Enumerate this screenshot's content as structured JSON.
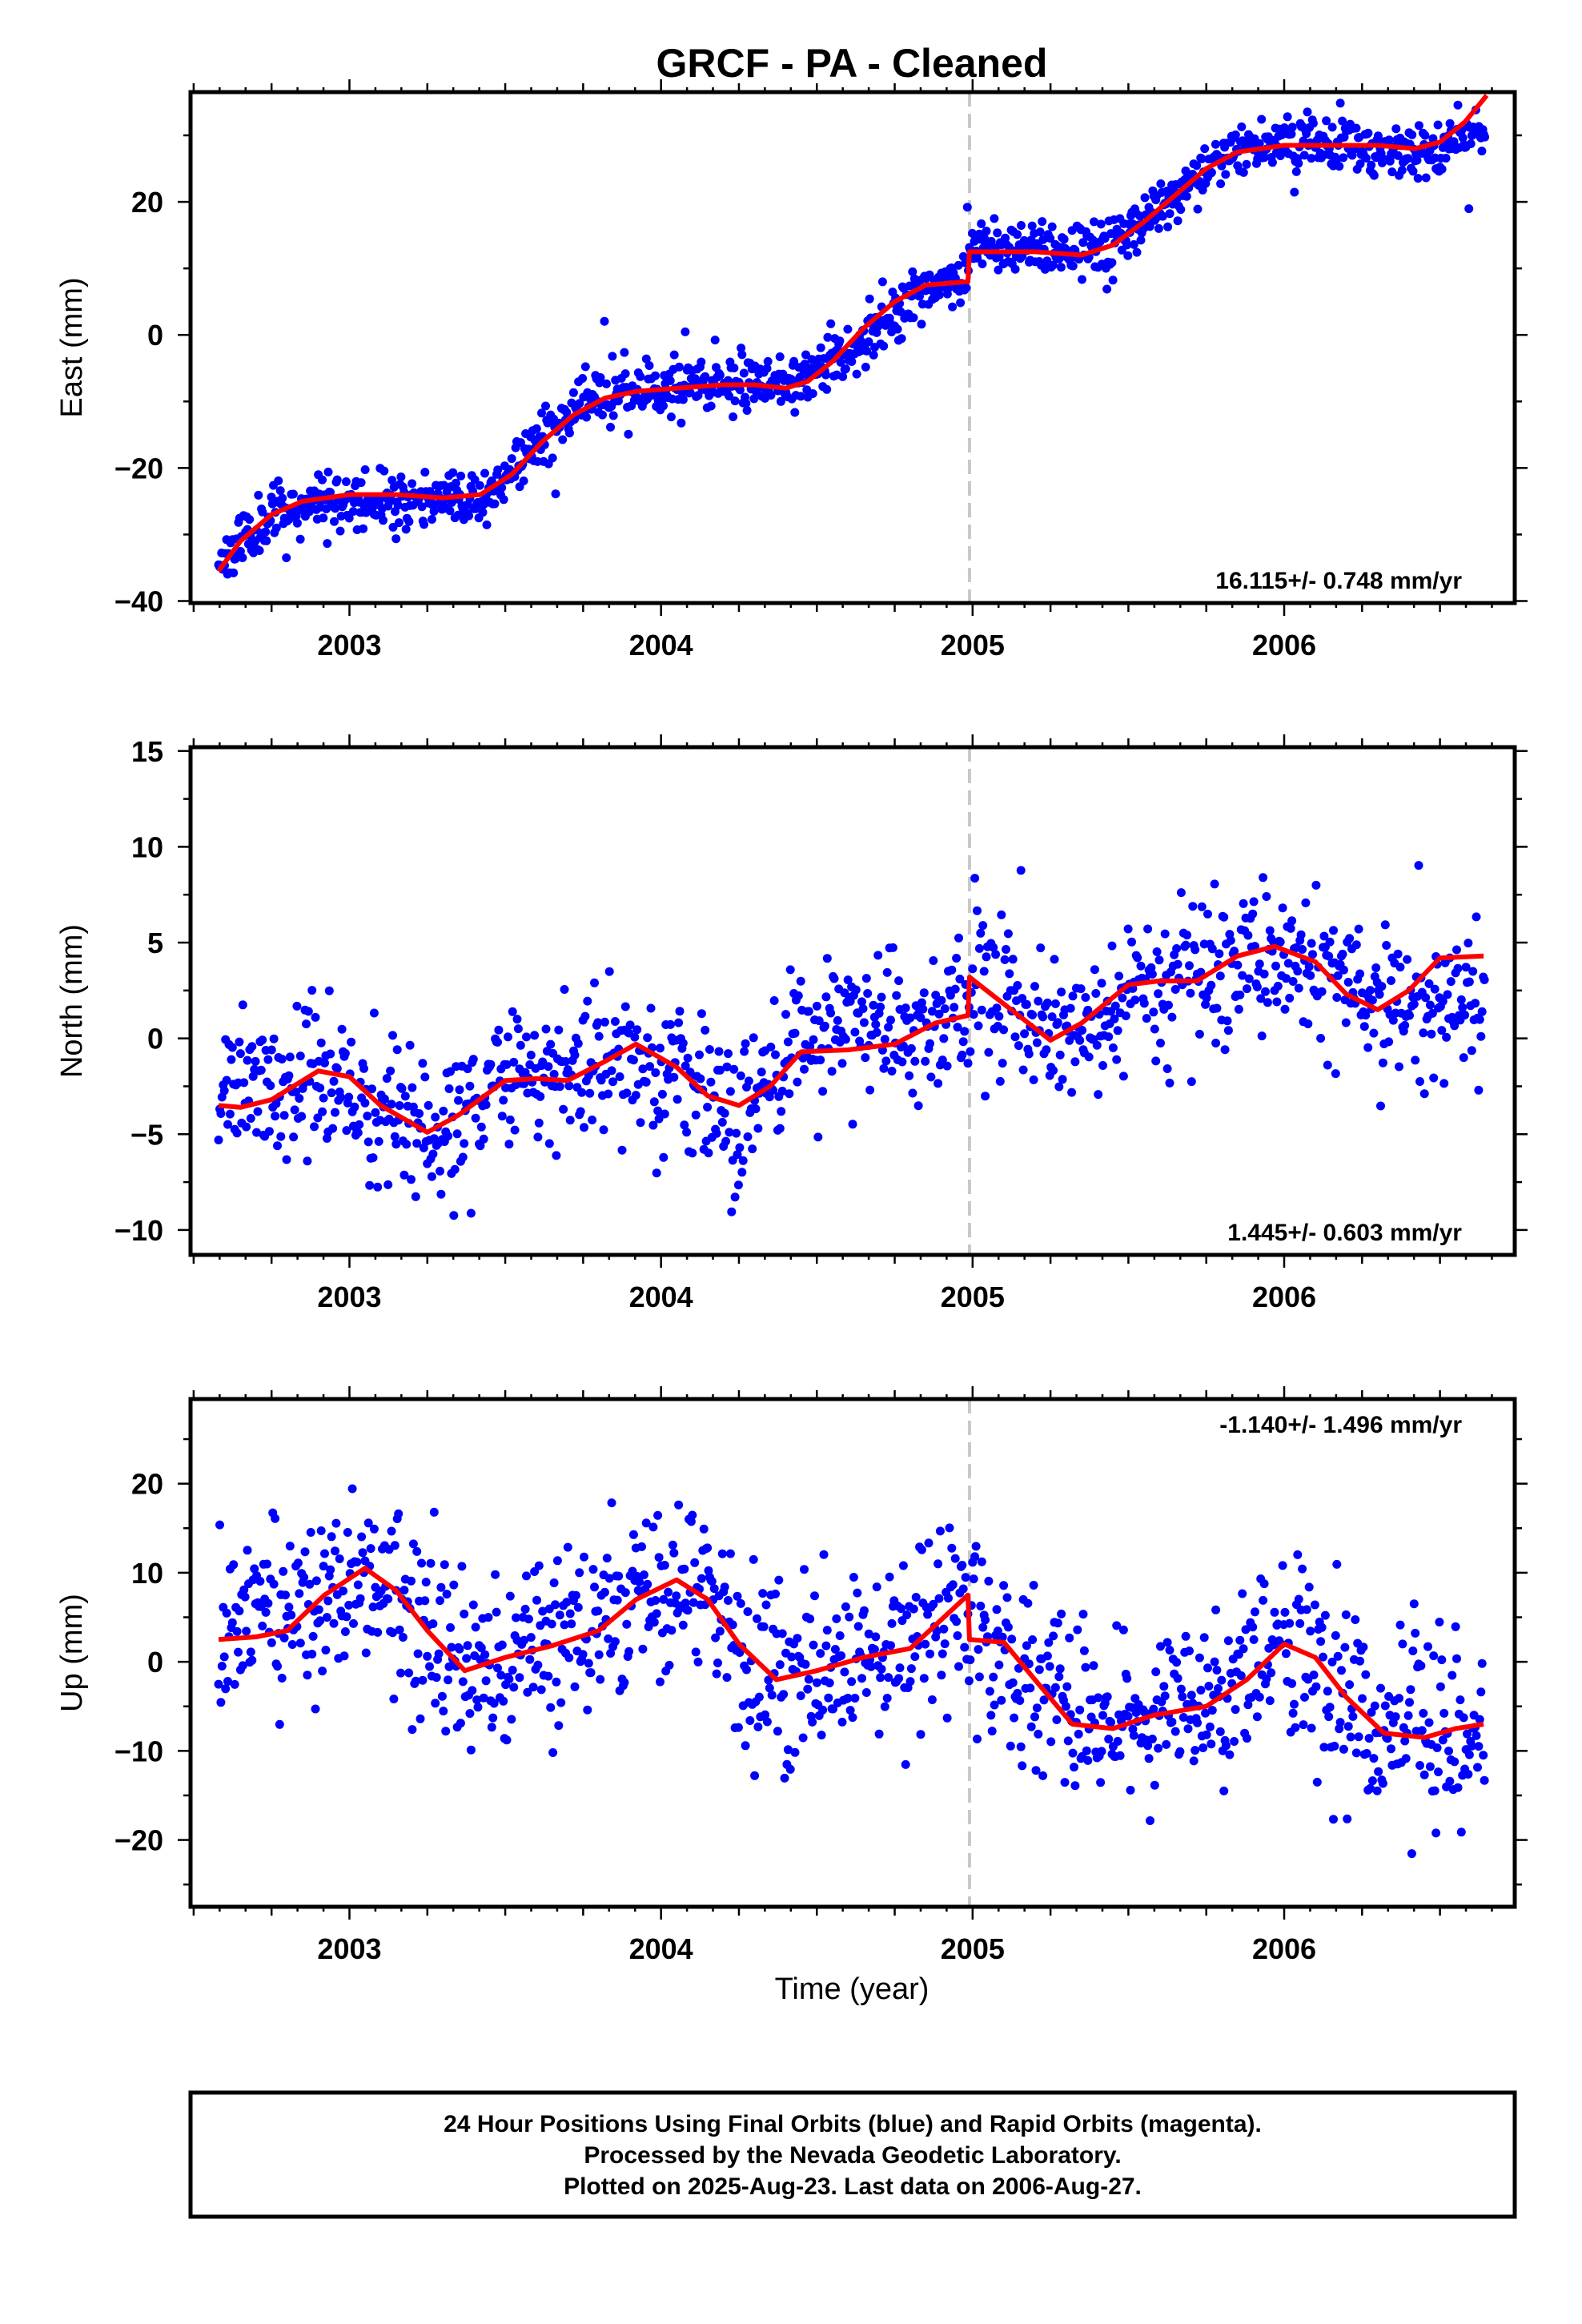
{
  "title": "GRCF  - PA - Cleaned",
  "xlabel": "Time (year)",
  "footer": [
    "24 Hour Positions Using Final Orbits (blue) and Rapid Orbits (magenta).",
    "Processed by the Nevada Geodetic Laboratory.",
    "Plotted on 2025-Aug-23. Last data on 2006-Aug-27."
  ],
  "colors": {
    "points": "#0000ff",
    "model": "#ff0000",
    "break_line": "#c8c8c8",
    "frame": "#000000"
  },
  "chart_data": [
    {
      "type": "scatter",
      "ylabel": "East (mm)",
      "rate_text": "16.115+/- 0.748 mm/yr",
      "xlim": [
        2002.49,
        2006.74
      ],
      "ylim": [
        -40.3,
        36.5
      ],
      "xticks": [
        2003,
        2004,
        2005,
        2006
      ],
      "yticks": [
        -40,
        -20,
        0,
        20
      ],
      "break_epoch": 2004.99,
      "model": [
        {
          "x": 2002.58,
          "y": -35.5
        },
        {
          "x": 2002.65,
          "y": -31
        },
        {
          "x": 2002.75,
          "y": -27
        },
        {
          "x": 2002.85,
          "y": -25
        },
        {
          "x": 2003.0,
          "y": -24
        },
        {
          "x": 2003.15,
          "y": -24
        },
        {
          "x": 2003.3,
          "y": -24.5
        },
        {
          "x": 2003.42,
          "y": -24
        },
        {
          "x": 2003.52,
          "y": -21
        },
        {
          "x": 2003.62,
          "y": -16
        },
        {
          "x": 2003.72,
          "y": -12
        },
        {
          "x": 2003.82,
          "y": -9.5
        },
        {
          "x": 2003.92,
          "y": -8.5
        },
        {
          "x": 2004.05,
          "y": -8
        },
        {
          "x": 2004.2,
          "y": -7.5
        },
        {
          "x": 2004.3,
          "y": -7.5
        },
        {
          "x": 2004.4,
          "y": -8
        },
        {
          "x": 2004.47,
          "y": -7
        },
        {
          "x": 2004.55,
          "y": -4
        },
        {
          "x": 2004.65,
          "y": 1
        },
        {
          "x": 2004.75,
          "y": 5
        },
        {
          "x": 2004.85,
          "y": 7.5
        },
        {
          "x": 2004.985,
          "y": 8
        },
        {
          "x": 2004.99,
          "y": 12.5
        },
        {
          "x": 2005.1,
          "y": 12.5
        },
        {
          "x": 2005.2,
          "y": 12.5
        },
        {
          "x": 2005.35,
          "y": 12
        },
        {
          "x": 2005.45,
          "y": 13.5
        },
        {
          "x": 2005.55,
          "y": 17
        },
        {
          "x": 2005.65,
          "y": 21
        },
        {
          "x": 2005.75,
          "y": 25
        },
        {
          "x": 2005.85,
          "y": 27.5
        },
        {
          "x": 2006.0,
          "y": 28.5
        },
        {
          "x": 2006.15,
          "y": 28.5
        },
        {
          "x": 2006.3,
          "y": 28.5
        },
        {
          "x": 2006.42,
          "y": 28
        },
        {
          "x": 2006.5,
          "y": 29
        },
        {
          "x": 2006.58,
          "y": 32
        },
        {
          "x": 2006.65,
          "y": 36
        }
      ],
      "observations": {
        "anchors": [
          [
            2002.58,
            -34
          ],
          [
            2002.75,
            -27
          ],
          [
            2002.9,
            -25
          ],
          [
            2003.2,
            -25
          ],
          [
            2003.42,
            -24.5
          ],
          [
            2003.55,
            -19
          ],
          [
            2003.75,
            -10
          ],
          [
            2003.95,
            -8
          ],
          [
            2004.35,
            -7
          ],
          [
            2004.48,
            -6
          ],
          [
            2004.65,
            -0.5
          ],
          [
            2004.85,
            7
          ],
          [
            2004.985,
            8
          ],
          [
            2004.99,
            13
          ],
          [
            2005.35,
            13
          ],
          [
            2005.5,
            15
          ],
          [
            2005.65,
            21
          ],
          [
            2005.9,
            29
          ],
          [
            2006.1,
            29.5
          ],
          [
            2006.4,
            27
          ],
          [
            2006.5,
            28
          ],
          [
            2006.64,
            31
          ]
        ],
        "start": 2002.58,
        "end": 2006.645,
        "step": 0.0032,
        "noise": 2.0,
        "outlier_rate": 0.03,
        "outlier_amplitude": 8,
        "seed": 11
      }
    },
    {
      "type": "scatter",
      "ylabel": "North (mm)",
      "rate_text": "1.445+/- 0.603 mm/yr",
      "xlim": [
        2002.49,
        2006.74
      ],
      "ylim": [
        -11.3,
        15.2
      ],
      "xticks": [
        2003,
        2004,
        2005,
        2006
      ],
      "yticks": [
        -10,
        -5,
        0,
        5,
        10,
        15
      ],
      "break_epoch": 2004.99,
      "model": [
        {
          "x": 2002.58,
          "y": -3.5
        },
        {
          "x": 2002.65,
          "y": -3.6
        },
        {
          "x": 2002.75,
          "y": -3.2
        },
        {
          "x": 2002.9,
          "y": -1.7
        },
        {
          "x": 2003.0,
          "y": -2
        },
        {
          "x": 2003.1,
          "y": -3.5
        },
        {
          "x": 2003.25,
          "y": -4.9
        },
        {
          "x": 2003.35,
          "y": -4
        },
        {
          "x": 2003.5,
          "y": -2.2
        },
        {
          "x": 2003.6,
          "y": -2.1
        },
        {
          "x": 2003.7,
          "y": -2.2
        },
        {
          "x": 2003.82,
          "y": -1.2
        },
        {
          "x": 2003.92,
          "y": -0.3
        },
        {
          "x": 2004.05,
          "y": -1.5
        },
        {
          "x": 2004.15,
          "y": -3
        },
        {
          "x": 2004.25,
          "y": -3.5
        },
        {
          "x": 2004.35,
          "y": -2.5
        },
        {
          "x": 2004.45,
          "y": -0.7
        },
        {
          "x": 2004.6,
          "y": -0.6
        },
        {
          "x": 2004.75,
          "y": -0.3
        },
        {
          "x": 2004.88,
          "y": 0.8
        },
        {
          "x": 2004.985,
          "y": 1.2
        },
        {
          "x": 2004.99,
          "y": 3.2
        },
        {
          "x": 2005.1,
          "y": 1.8
        },
        {
          "x": 2005.25,
          "y": -0.1
        },
        {
          "x": 2005.35,
          "y": 0.8
        },
        {
          "x": 2005.5,
          "y": 2.8
        },
        {
          "x": 2005.6,
          "y": 3
        },
        {
          "x": 2005.72,
          "y": 3
        },
        {
          "x": 2005.85,
          "y": 4.3
        },
        {
          "x": 2005.97,
          "y": 4.8
        },
        {
          "x": 2006.1,
          "y": 4
        },
        {
          "x": 2006.2,
          "y": 2.3
        },
        {
          "x": 2006.3,
          "y": 1.5
        },
        {
          "x": 2006.4,
          "y": 2.5
        },
        {
          "x": 2006.5,
          "y": 4.2
        },
        {
          "x": 2006.64,
          "y": 4.3
        }
      ],
      "observations": {
        "anchors": [
          [
            2002.58,
            -3.2
          ],
          [
            2002.9,
            -2
          ],
          [
            2003.25,
            -5
          ],
          [
            2003.5,
            -2.5
          ],
          [
            2003.92,
            -0.8
          ],
          [
            2004.25,
            -4
          ],
          [
            2004.45,
            0.5
          ],
          [
            2004.985,
            1
          ],
          [
            2004.99,
            2.5
          ],
          [
            2005.25,
            0
          ],
          [
            2005.6,
            3
          ],
          [
            2005.97,
            4.5
          ],
          [
            2006.3,
            1.5
          ],
          [
            2006.64,
            1.5
          ]
        ],
        "start": 2002.58,
        "end": 2006.645,
        "step": 0.0037,
        "noise": 1.9,
        "outlier_rate": 0.04,
        "outlier_amplitude": 4,
        "seed": 23
      }
    },
    {
      "type": "scatter",
      "ylabel": "Up (mm)",
      "rate_text": "-1.140+/- 1.496 mm/yr",
      "xlim": [
        2002.49,
        2006.74
      ],
      "ylim": [
        -27.5,
        29.5
      ],
      "xticks": [
        2003,
        2004,
        2005,
        2006
      ],
      "yticks": [
        -20,
        -10,
        0,
        10,
        20
      ],
      "break_epoch": 2004.99,
      "model": [
        {
          "x": 2002.58,
          "y": 2.5
        },
        {
          "x": 2002.7,
          "y": 2.8
        },
        {
          "x": 2002.8,
          "y": 3.5
        },
        {
          "x": 2002.92,
          "y": 7.5
        },
        {
          "x": 2003.05,
          "y": 10.5
        },
        {
          "x": 2003.15,
          "y": 8
        },
        {
          "x": 2003.25,
          "y": 3.5
        },
        {
          "x": 2003.37,
          "y": -1
        },
        {
          "x": 2003.5,
          "y": 0.5
        },
        {
          "x": 2003.65,
          "y": 1.8
        },
        {
          "x": 2003.8,
          "y": 3.5
        },
        {
          "x": 2003.92,
          "y": 7
        },
        {
          "x": 2004.05,
          "y": 9.2
        },
        {
          "x": 2004.15,
          "y": 7
        },
        {
          "x": 2004.25,
          "y": 2
        },
        {
          "x": 2004.37,
          "y": -2
        },
        {
          "x": 2004.5,
          "y": -1
        },
        {
          "x": 2004.65,
          "y": 0.5
        },
        {
          "x": 2004.8,
          "y": 1.5
        },
        {
          "x": 2004.985,
          "y": 7.5
        },
        {
          "x": 2004.99,
          "y": 2.5
        },
        {
          "x": 2005.1,
          "y": 2.2
        },
        {
          "x": 2005.2,
          "y": -2
        },
        {
          "x": 2005.32,
          "y": -7
        },
        {
          "x": 2005.45,
          "y": -7.5
        },
        {
          "x": 2005.58,
          "y": -6
        },
        {
          "x": 2005.75,
          "y": -5
        },
        {
          "x": 2005.88,
          "y": -2
        },
        {
          "x": 2006.0,
          "y": 2
        },
        {
          "x": 2006.1,
          "y": 0.5
        },
        {
          "x": 2006.2,
          "y": -4
        },
        {
          "x": 2006.32,
          "y": -8
        },
        {
          "x": 2006.45,
          "y": -8.5
        },
        {
          "x": 2006.55,
          "y": -7.5
        },
        {
          "x": 2006.64,
          "y": -7
        }
      ],
      "observations": {
        "anchors": [
          [
            2002.58,
            3
          ],
          [
            2002.8,
            5
          ],
          [
            2003.05,
            10
          ],
          [
            2003.37,
            -2
          ],
          [
            2003.65,
            2
          ],
          [
            2004.05,
            9
          ],
          [
            2004.37,
            -2
          ],
          [
            2004.65,
            0.5
          ],
          [
            2004.985,
            7
          ],
          [
            2004.99,
            5
          ],
          [
            2005.2,
            -2
          ],
          [
            2005.45,
            -7.5
          ],
          [
            2005.75,
            -5
          ],
          [
            2006.0,
            2
          ],
          [
            2006.32,
            -8
          ],
          [
            2006.64,
            -7
          ]
        ],
        "start": 2002.58,
        "end": 2006.645,
        "step": 0.0037,
        "noise": 5.0,
        "outlier_rate": 0.04,
        "outlier_amplitude": 10,
        "seed": 37
      }
    }
  ]
}
